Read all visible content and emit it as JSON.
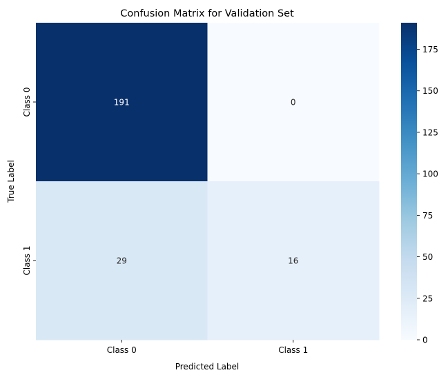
{
  "chart_data": {
    "type": "heatmap",
    "title": "Confusion Matrix for Validation Set",
    "xlabel": "Predicted Label",
    "ylabel": "True Label",
    "x_categories": [
      "Class 0",
      "Class 1"
    ],
    "y_categories": [
      "Class 0",
      "Class 1"
    ],
    "values": [
      [
        191,
        0
      ],
      [
        29,
        16
      ]
    ],
    "colormap": "Blues",
    "color_range": [
      0,
      191
    ],
    "colorbar_ticks": [
      0,
      25,
      50,
      75,
      100,
      125,
      150,
      175
    ],
    "annotations": true,
    "grid": false
  }
}
